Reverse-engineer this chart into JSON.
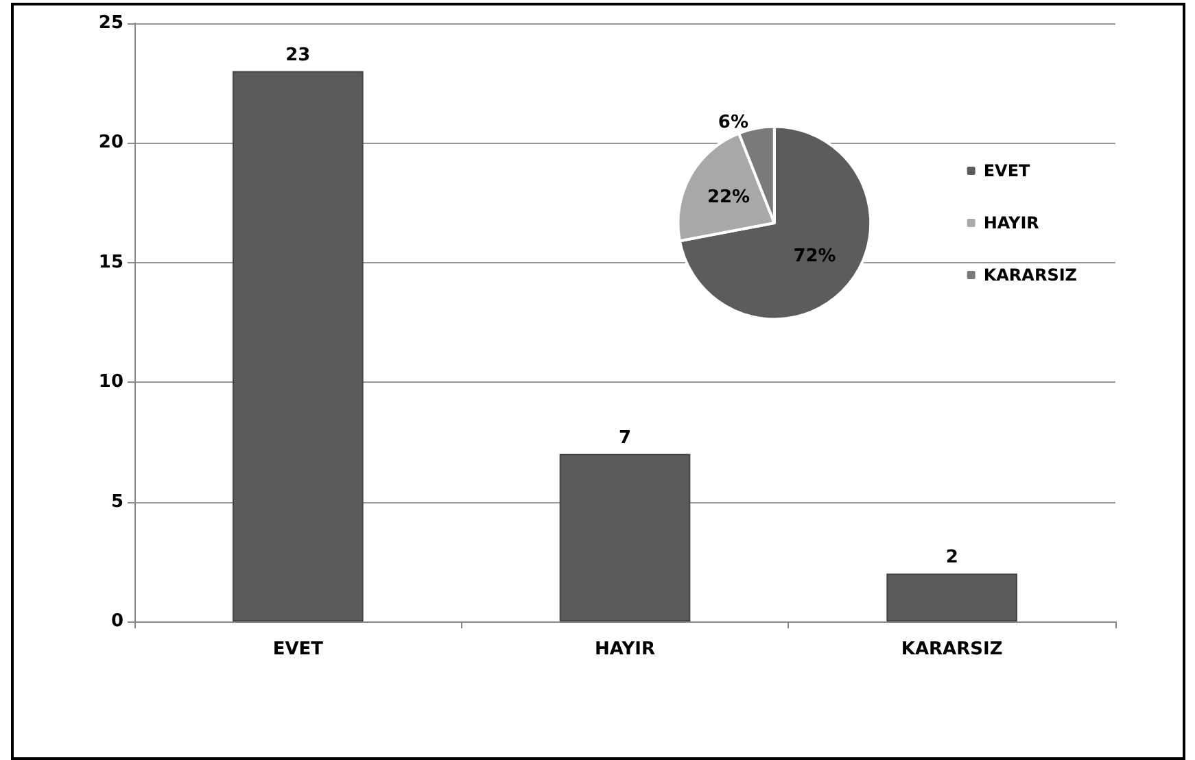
{
  "chart_data": [
    {
      "type": "bar",
      "categories": [
        "EVET",
        "HAYIR",
        "KARARSIZ"
      ],
      "values": [
        23,
        7,
        2
      ],
      "color": "#5a5a5a",
      "ylim": [
        0,
        25
      ],
      "yticks": [
        0,
        5,
        10,
        15,
        20,
        25
      ],
      "grid": "y",
      "data_labels": true,
      "legend": false
    },
    {
      "type": "pie",
      "categories": [
        "EVET",
        "HAYIR",
        "KARARSIZ"
      ],
      "values": [
        72,
        22,
        6
      ],
      "colors": [
        "#5c5c5c",
        "#a8a8a8",
        "#7a7a7a"
      ],
      "value_labels": [
        "72%",
        "22%",
        "6%"
      ],
      "legend": "right"
    }
  ]
}
